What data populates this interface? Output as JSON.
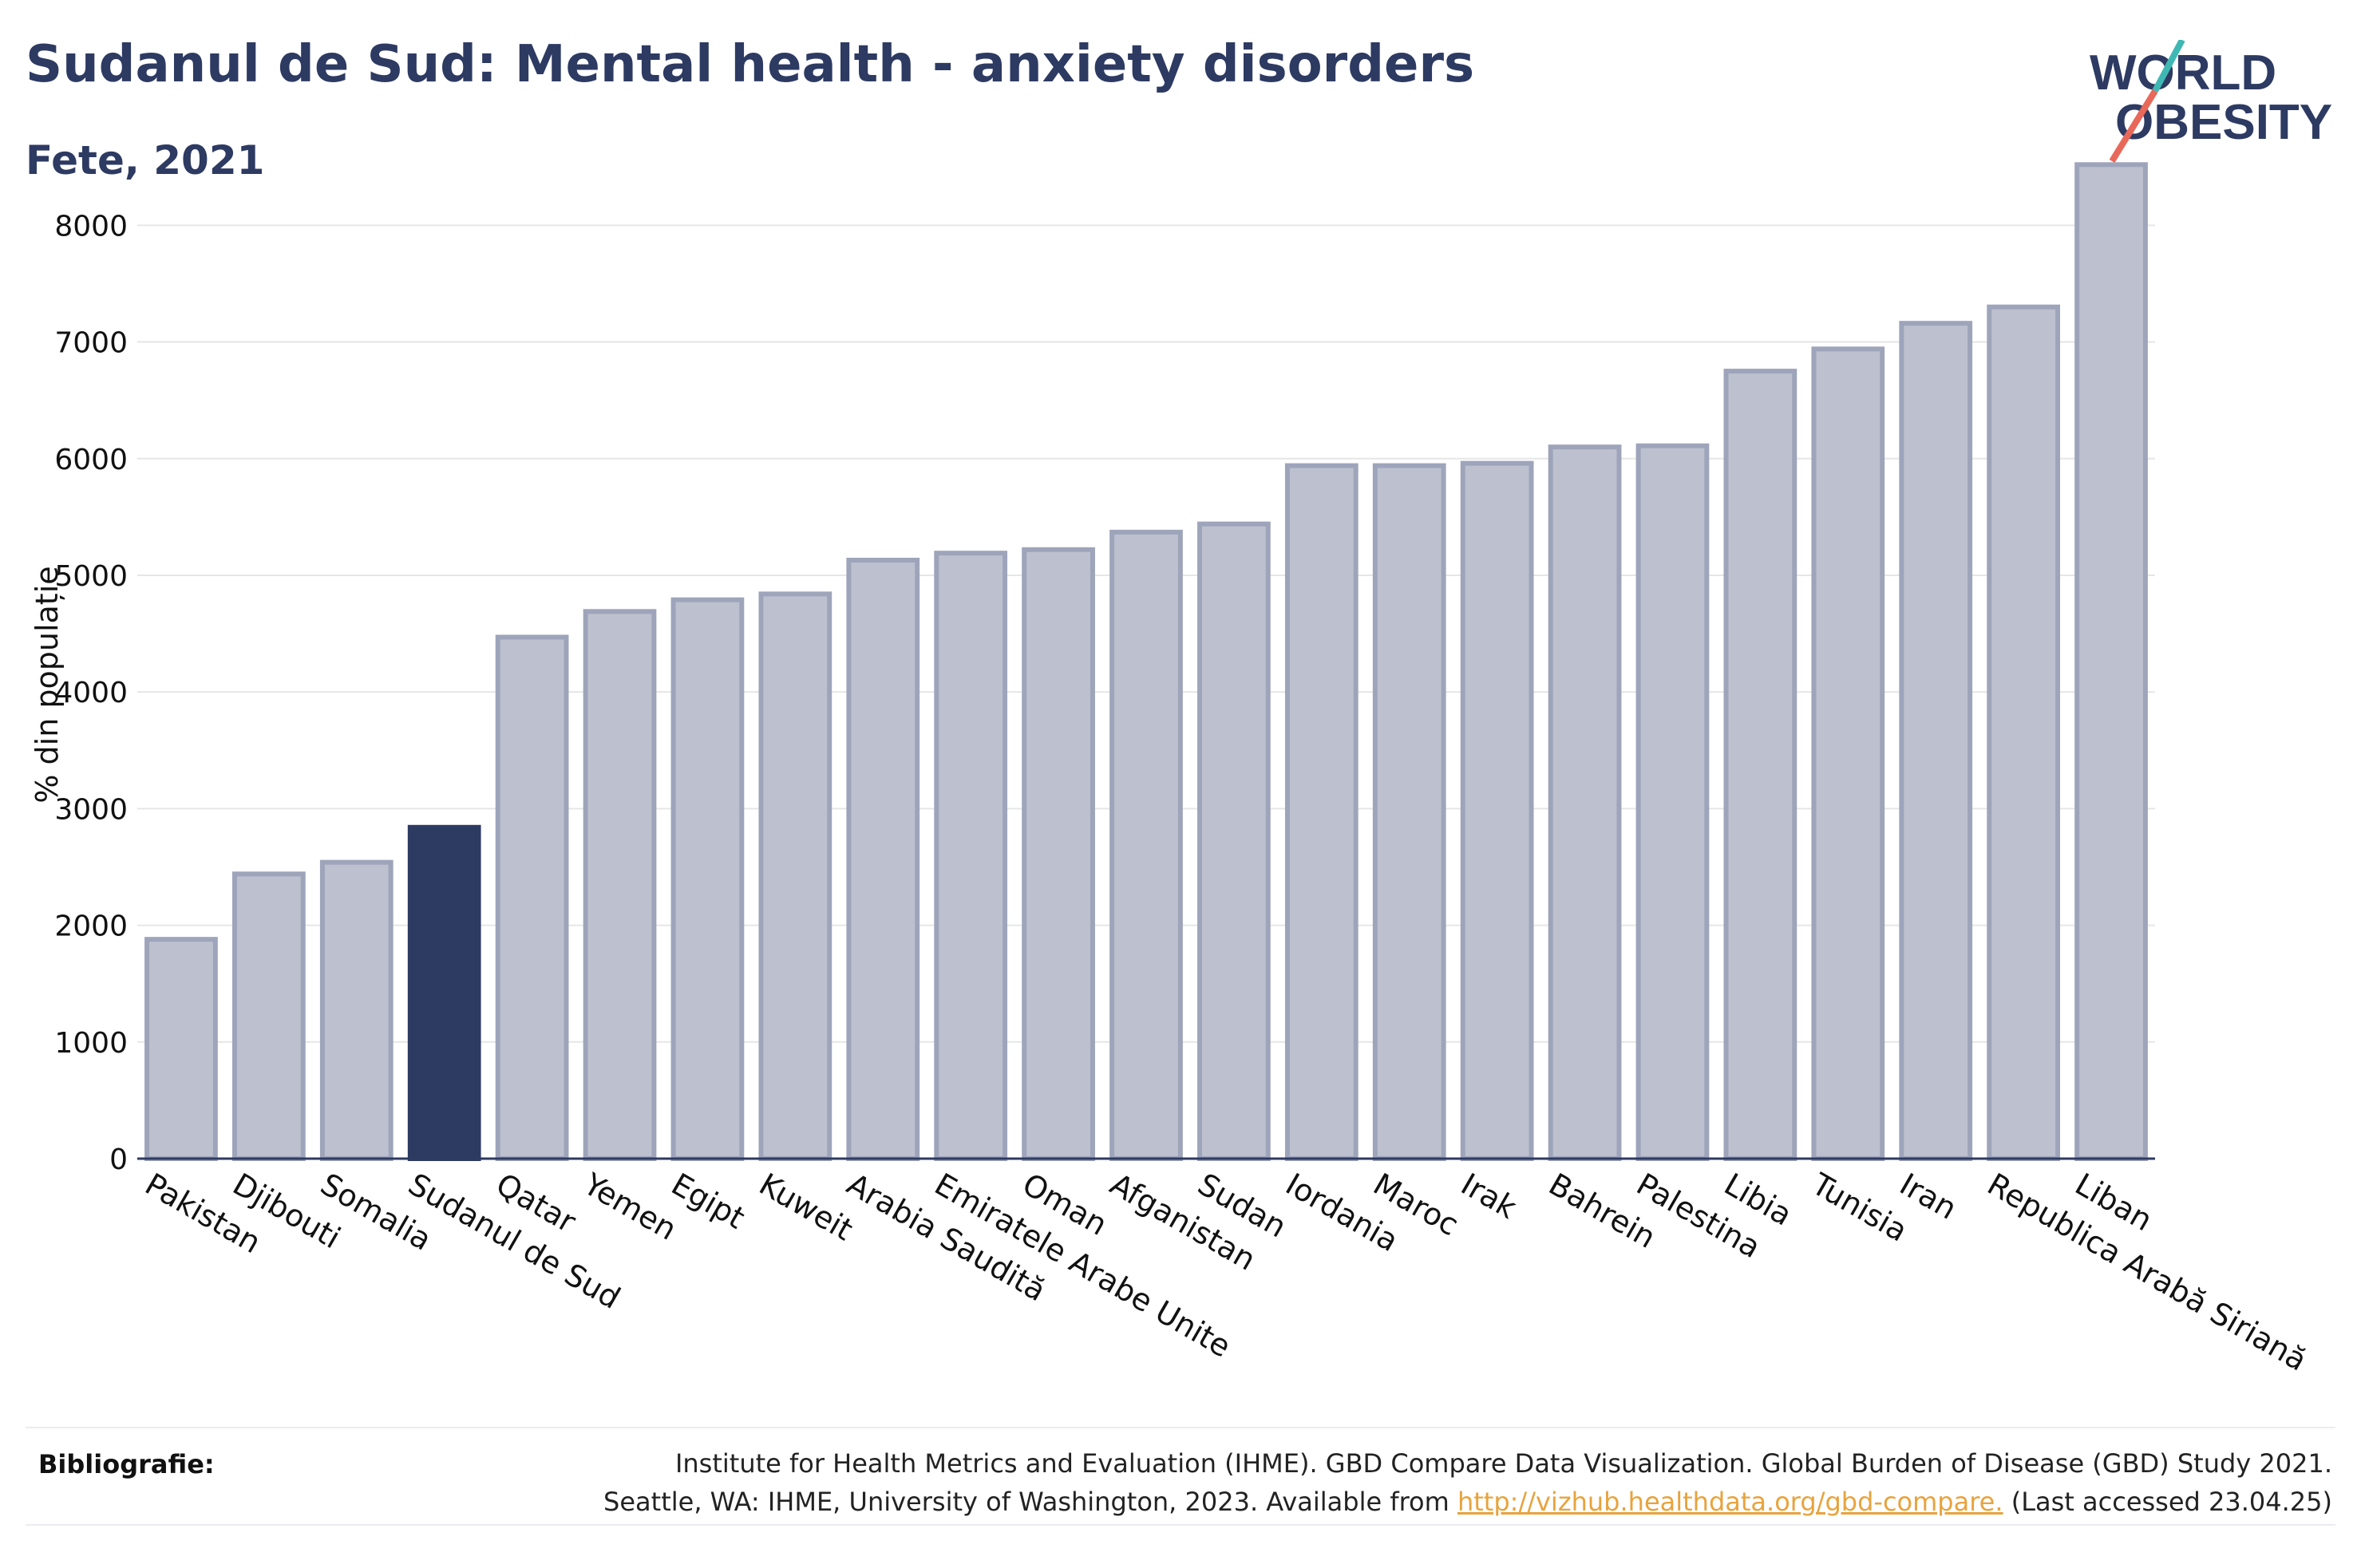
{
  "header": {
    "title": "Sudanul de Sud: Mental health - anxiety disorders",
    "subtitle": "Fete, 2021"
  },
  "logo": {
    "line1": "WORLD",
    "line2": "OBESITY"
  },
  "colors": {
    "bar": "#bdc1cf",
    "bar_stroke": "#9ea4ba",
    "highlight": "#2d3a62",
    "grid": "#e6e6e6",
    "axis": "#2d3a62",
    "title": "#2d3a62",
    "link": "#e8a33d"
  },
  "chart_data": {
    "type": "bar",
    "ylabel": "% din populație",
    "xlabel": "",
    "ylim": [
      0,
      8700
    ],
    "yticks": [
      0,
      1000,
      2000,
      3000,
      4000,
      5000,
      6000,
      7000,
      8000
    ],
    "grid": true,
    "highlight": "Sudanul de Sud",
    "categories": [
      "Pakistan",
      "Djibouti",
      "Somalia",
      "Sudanul de Sud",
      "Qatar",
      "Yemen",
      "Egipt",
      "Kuweit",
      "Arabia Saudită",
      "Emiratele Arabe Unite",
      "Oman",
      "Afganistan",
      "Sudan",
      "Iordania",
      "Maroc",
      "Irak",
      "Bahrein",
      "Palestina",
      "Libia",
      "Tunisia",
      "Iran",
      "Republica Arabă Siriană",
      "Liban"
    ],
    "values": [
      1880,
      2440,
      2540,
      2840,
      4470,
      4690,
      4790,
      4840,
      5130,
      5190,
      5220,
      5370,
      5440,
      5940,
      5940,
      5960,
      6100,
      6110,
      6750,
      6940,
      7160,
      7300,
      8520
    ]
  },
  "footer": {
    "label": "Bibliografie:",
    "line1": "Institute for Health Metrics and Evaluation (IHME). GBD Compare Data Visualization. Global Burden of Disease (GBD) Study 2021.",
    "line2_prefix": "Seattle, WA: IHME, University of Washington, 2023. Available from ",
    "link": "http://vizhub.healthdata.org/gbd-compare.",
    "line2_suffix": " (Last accessed 23.04.25)"
  }
}
